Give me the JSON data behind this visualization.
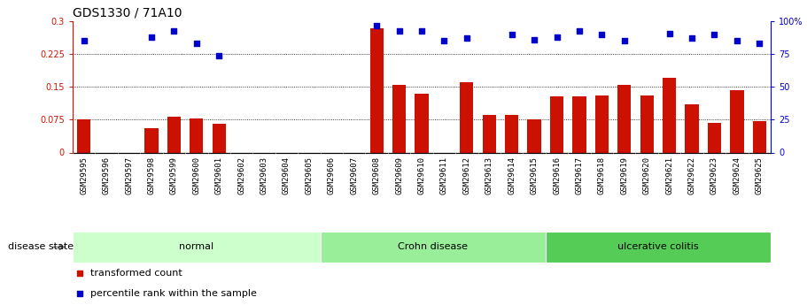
{
  "title": "GDS1330 / 71A10",
  "samples": [
    "GSM29595",
    "GSM29596",
    "GSM29597",
    "GSM29598",
    "GSM29599",
    "GSM29600",
    "GSM29601",
    "GSM29602",
    "GSM29603",
    "GSM29604",
    "GSM29605",
    "GSM29606",
    "GSM29607",
    "GSM29608",
    "GSM29609",
    "GSM29610",
    "GSM29611",
    "GSM29612",
    "GSM29613",
    "GSM29614",
    "GSM29615",
    "GSM29616",
    "GSM29617",
    "GSM29618",
    "GSM29619",
    "GSM29620",
    "GSM29621",
    "GSM29622",
    "GSM29623",
    "GSM29624",
    "GSM29625"
  ],
  "bar_values": [
    0.075,
    0.0,
    0.0,
    0.055,
    0.082,
    0.078,
    0.065,
    0.0,
    0.0,
    0.0,
    0.0,
    0.0,
    0.0,
    0.285,
    0.155,
    0.135,
    0.0,
    0.16,
    0.085,
    0.085,
    0.075,
    0.128,
    0.128,
    0.13,
    0.155,
    0.13,
    0.17,
    0.11,
    0.068,
    0.142,
    0.072
  ],
  "scatter_pct": [
    85,
    -1,
    -1,
    88,
    93,
    83,
    74,
    -1,
    -1,
    -1,
    -1,
    -1,
    -1,
    97,
    93,
    93,
    85,
    87,
    -1,
    90,
    86,
    88,
    93,
    90,
    85,
    -1,
    91,
    87,
    90,
    85,
    83
  ],
  "disease_groups": [
    {
      "label": "normal",
      "start": 0,
      "end": 10,
      "color": "#ccffcc"
    },
    {
      "label": "Crohn disease",
      "start": 11,
      "end": 20,
      "color": "#99ee99"
    },
    {
      "label": "ulcerative colitis",
      "start": 21,
      "end": 30,
      "color": "#55cc55"
    }
  ],
  "bar_color": "#cc1100",
  "scatter_color": "#0000cc",
  "ylim_left": [
    0,
    0.3
  ],
  "ylim_right": [
    0,
    100
  ],
  "yticks_left": [
    0,
    0.075,
    0.15,
    0.225,
    0.3
  ],
  "ytick_labels_left": [
    "0",
    "0.075",
    "0.15",
    "0.225",
    "0.3"
  ],
  "yticks_right": [
    0,
    25,
    50,
    75,
    100
  ],
  "ytick_labels_right": [
    "0",
    "25",
    "50",
    "75",
    "100%"
  ],
  "hlines": [
    0.075,
    0.15,
    0.225
  ],
  "disease_state_label": "disease state",
  "legend_bar": "transformed count",
  "legend_scatter": "percentile rank within the sample",
  "bar_width": 0.6,
  "title_fontsize": 10,
  "tick_fontsize": 7,
  "label_fontsize": 8,
  "xtick_fontsize": 6.5,
  "xlim": [
    -0.5,
    30.5
  ],
  "n_samples": 31
}
